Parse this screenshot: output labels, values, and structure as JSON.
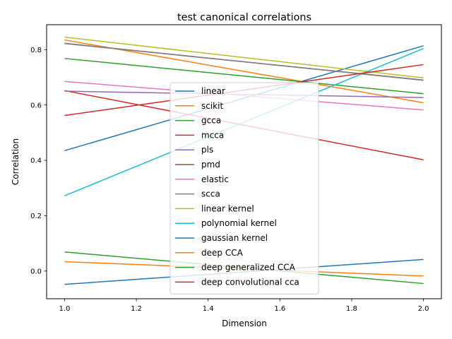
{
  "chart_data": {
    "type": "line",
    "title": "test canonical correlations",
    "xlabel": "Dimension",
    "ylabel": "Correlation",
    "xlim": [
      0.95,
      2.05
    ],
    "ylim": [
      -0.1,
      0.89
    ],
    "xticks": [
      1.0,
      1.2,
      1.4,
      1.6,
      1.8,
      2.0
    ],
    "xtick_labels": [
      "1.0",
      "1.2",
      "1.4",
      "1.6",
      "1.8",
      "2.0"
    ],
    "yticks": [
      0.0,
      0.2,
      0.4,
      0.6,
      0.8
    ],
    "ytick_labels": [
      "0.0",
      "0.2",
      "0.4",
      "0.6",
      "0.8"
    ],
    "grid": false,
    "legend_position": "center",
    "x": [
      1,
      2
    ],
    "series": [
      {
        "name": "linear",
        "color": "#1f77b4",
        "values": [
          0.435,
          0.814
        ]
      },
      {
        "name": "scikit",
        "color": "#ff7f0e",
        "values": [
          0.835,
          0.608
        ]
      },
      {
        "name": "gcca",
        "color": "#2ca02c",
        "values": [
          0.768,
          0.641
        ]
      },
      {
        "name": "mcca",
        "color": "#d62728",
        "values": [
          0.652,
          0.402
        ]
      },
      {
        "name": "pls",
        "color": "#9467bd",
        "values": [
          0.65,
          0.627
        ]
      },
      {
        "name": "pmd",
        "color": "#8c564b",
        "values": [
          0.822,
          0.69
        ]
      },
      {
        "name": "elastic",
        "color": "#e377c2",
        "values": [
          0.685,
          0.582
        ]
      },
      {
        "name": "scca",
        "color": "#7f7f7f",
        "values": [
          0.823,
          0.689
        ]
      },
      {
        "name": "linear kernel",
        "color": "#bcbd22",
        "values": [
          0.845,
          0.698
        ]
      },
      {
        "name": "polynomial kernel",
        "color": "#17becf",
        "values": [
          0.272,
          0.804
        ]
      },
      {
        "name": "gaussian kernel",
        "color": "#1f77b4",
        "values": [
          -0.048,
          0.042
        ]
      },
      {
        "name": "deep CCA",
        "color": "#ff7f0e",
        "values": [
          0.034,
          -0.018
        ]
      },
      {
        "name": "deep generalized CCA",
        "color": "#2ca02c",
        "values": [
          0.069,
          -0.045
        ]
      },
      {
        "name": "deep convolutional cca",
        "color": "#d62728",
        "values": [
          0.562,
          0.746
        ]
      }
    ]
  }
}
